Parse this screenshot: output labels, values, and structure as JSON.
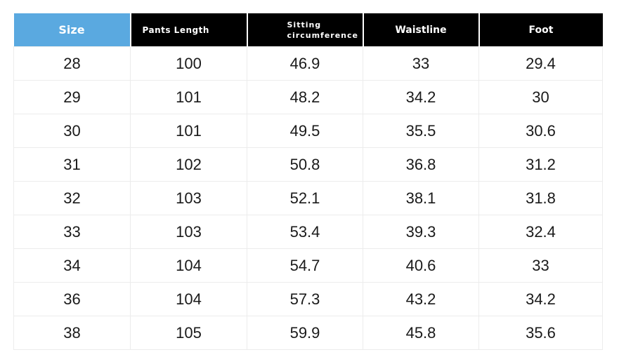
{
  "colors": {
    "size_header": "#5aa9e0",
    "header": "#000000"
  },
  "headers": [
    "Size",
    "Pants Length",
    "Sitting circumference",
    "Waistline",
    "Foot"
  ],
  "rows": [
    [
      "28",
      "100",
      "46.9",
      "33",
      "29.4"
    ],
    [
      "29",
      "101",
      "48.2",
      "34.2",
      "30"
    ],
    [
      "30",
      "101",
      "49.5",
      "35.5",
      "30.6"
    ],
    [
      "31",
      "102",
      "50.8",
      "36.8",
      "31.2"
    ],
    [
      "32",
      "103",
      "52.1",
      "38.1",
      "31.8"
    ],
    [
      "33",
      "103",
      "53.4",
      "39.3",
      "32.4"
    ],
    [
      "34",
      "104",
      "54.7",
      "40.6",
      "33"
    ],
    [
      "36",
      "104",
      "57.3",
      "43.2",
      "34.2"
    ],
    [
      "38",
      "105",
      "59.9",
      "45.8",
      "35.6"
    ]
  ]
}
